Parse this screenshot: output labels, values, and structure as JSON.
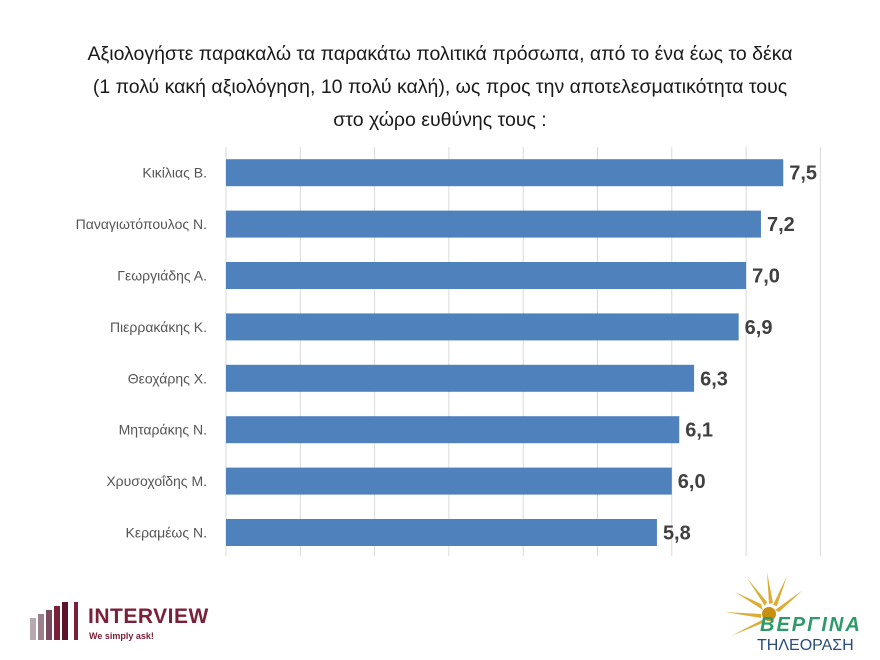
{
  "title_lines": [
    "Αξιολογήστε παρακαλώ τα παρακάτω πολιτικά πρόσωπα, από το ένα έως το δέκα",
    "(1 πολύ κακή αξιολόγηση, 10 πολύ καλή), ως προς την αποτελεσματικότητα τους",
    "στο χώρο ευθύνης τους :"
  ],
  "chart_data": {
    "type": "bar",
    "orientation": "horizontal",
    "categories": [
      "Κικίλιας Β.",
      "Παναγιωτόπουλος Ν.",
      "Γεωργιάδης Α.",
      "Πιερρακάκης Κ.",
      "Θεοχάρης Χ.",
      "Μηταράκης Ν.",
      "Χρυσοχοΐδης Μ.",
      "Κεραμέως Ν."
    ],
    "values": [
      7.5,
      7.2,
      7.0,
      6.9,
      6.3,
      6.1,
      6.0,
      5.8
    ],
    "value_labels": [
      "7,5",
      "7,2",
      "7,0",
      "6,9",
      "6,3",
      "6,1",
      "6,0",
      "5,8"
    ],
    "xlim": [
      0,
      8
    ],
    "grid": true,
    "bar_color": "#4f81bd",
    "title": "Αξιολογήστε παρακαλώ τα παρακάτω πολιτικά πρόσωπα, από το ένα έως το δέκα (1 πολύ κακή αξιολόγηση, 10 πολύ καλή), ως προς την αποτελεσματικότητα τους στο χώρο ευθύνης τους :"
  },
  "logos": {
    "interview": {
      "name": "INTERVIEW",
      "tagline": "We simply ask!",
      "color": "#7a2038"
    },
    "vergina": {
      "name": "ΒΕΡΓΙΝΑ",
      "subtitle": "ΤΗΛΕΟΡΑΣΗ",
      "green": "#2e9a6a",
      "gold": "#d9a520"
    }
  }
}
